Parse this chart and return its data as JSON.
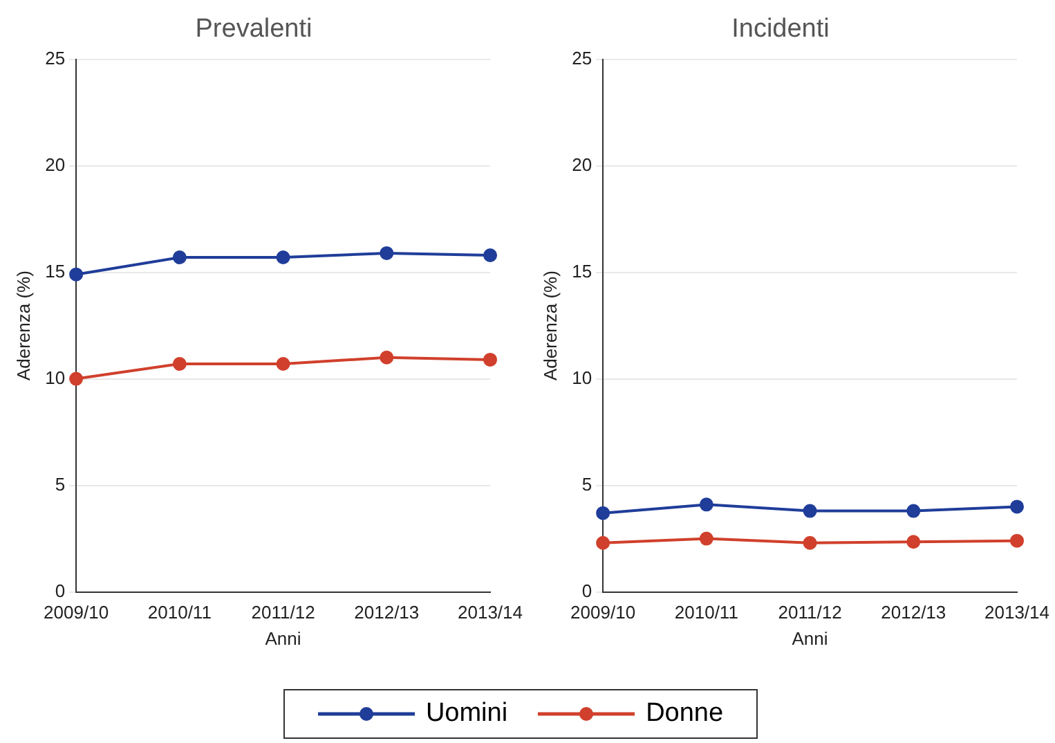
{
  "chart_data": [
    {
      "type": "line",
      "title": "Prevalenti",
      "xlabel": "Anni",
      "ylabel": "Aderenza (%)",
      "categories": [
        "2009/10",
        "2010/11",
        "2011/12",
        "2012/13",
        "2013/14"
      ],
      "series": [
        {
          "name": "Uomini",
          "color": "#1f3d99",
          "values": [
            14.9,
            15.7,
            15.7,
            15.9,
            15.8
          ]
        },
        {
          "name": "Donne",
          "color": "#d0402c",
          "values": [
            10.0,
            10.7,
            10.7,
            11.0,
            10.9
          ]
        }
      ],
      "ylim": [
        0,
        25
      ],
      "yticks": [
        0,
        5,
        10,
        15,
        20,
        25
      ],
      "grid": "y",
      "marker": "circle",
      "legend": "bottom"
    },
    {
      "type": "line",
      "title": "Incidenti",
      "xlabel": "Anni",
      "ylabel": "Aderenza (%)",
      "categories": [
        "2009/10",
        "2010/11",
        "2011/12",
        "2012/13",
        "2013/14"
      ],
      "series": [
        {
          "color": "#1f3d99",
          "values": [
            3.7,
            4.1,
            3.8,
            3.8,
            4.0
          ]
        },
        {
          "color": "#d0402c",
          "values": [
            2.3,
            2.5,
            2.3,
            2.35,
            2.4
          ]
        }
      ],
      "ylim": [
        0,
        25
      ],
      "yticks": [
        0,
        5,
        10,
        15,
        20,
        25
      ],
      "grid": "y",
      "marker": "circle"
    }
  ]
}
